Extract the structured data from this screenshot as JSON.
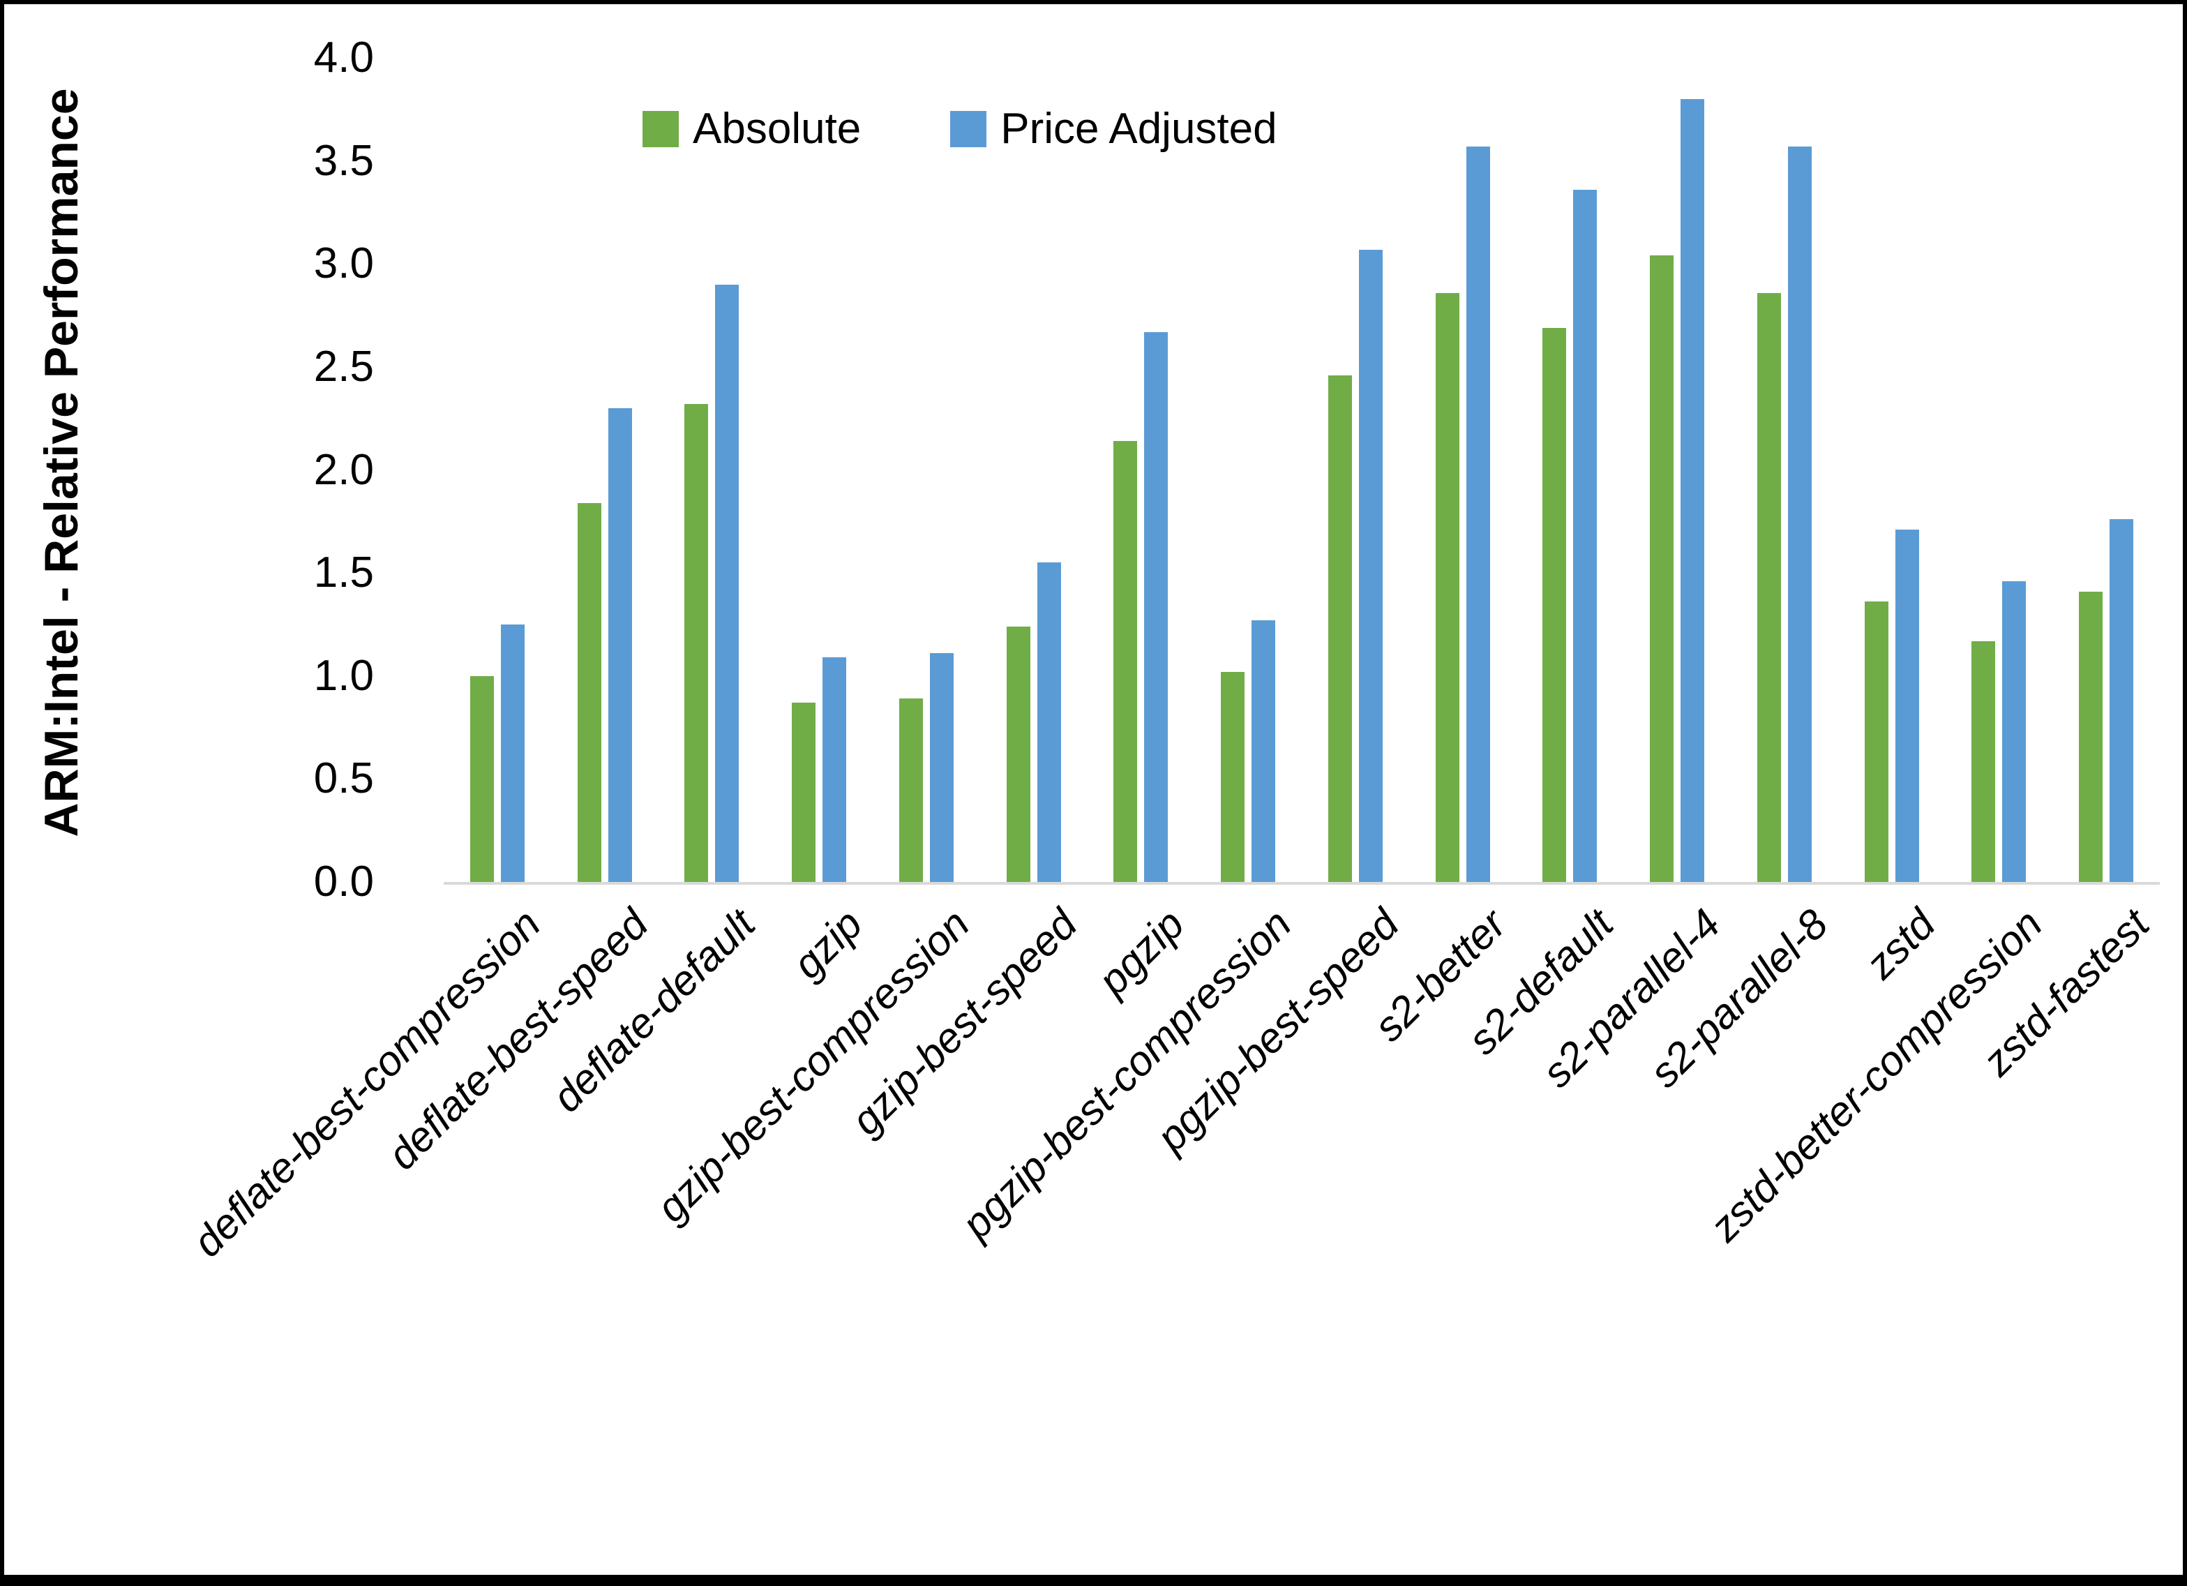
{
  "chart_data": {
    "type": "bar",
    "title": "",
    "xlabel": "",
    "ylabel": "ARM:Intel - Relative Performance",
    "ylim": [
      0.0,
      4.0
    ],
    "ytick_step": 0.5,
    "ytick_labels": [
      "4.0",
      "3.5",
      "3.0",
      "2.5",
      "2.0",
      "1.5",
      "1.0",
      "0.5",
      "0.0"
    ],
    "grid": false,
    "legend_position": "top-center",
    "categories": [
      "deflate-best-compression",
      "deflate-best-speed",
      "deflate-default",
      "gzip",
      "gzip-best-compression",
      "gzip-best-speed",
      "pgzip",
      "pgzip-best-compression",
      "pgzip-best-speed",
      "s2-better",
      "s2-default",
      "s2-parallel-4",
      "s2-parallel-8",
      "zstd",
      "zstd-better-compression",
      "zstd-fastest"
    ],
    "series": [
      {
        "name": "Absolute",
        "color": "#70AD47",
        "values": [
          1.0,
          1.84,
          2.32,
          0.87,
          0.89,
          1.24,
          2.14,
          1.02,
          2.46,
          2.86,
          2.69,
          3.04,
          2.86,
          1.36,
          1.17,
          1.41
        ]
      },
      {
        "name": "Price Adjusted",
        "color": "#5B9BD5",
        "values": [
          1.25,
          2.3,
          2.9,
          1.09,
          1.11,
          1.55,
          2.67,
          1.27,
          3.07,
          3.57,
          3.36,
          3.8,
          3.57,
          1.71,
          1.46,
          1.76
        ]
      }
    ]
  },
  "legend": {
    "absolute_label": "Absolute",
    "price_adjusted_label": "Price Adjusted"
  },
  "axis": {
    "y_title": "ARM:Intel - Relative Performance"
  },
  "colors": {
    "absolute": "#70AD47",
    "price_adjusted": "#5B9BD5",
    "axis_line": "#D9D9D9",
    "text": "#000000"
  }
}
